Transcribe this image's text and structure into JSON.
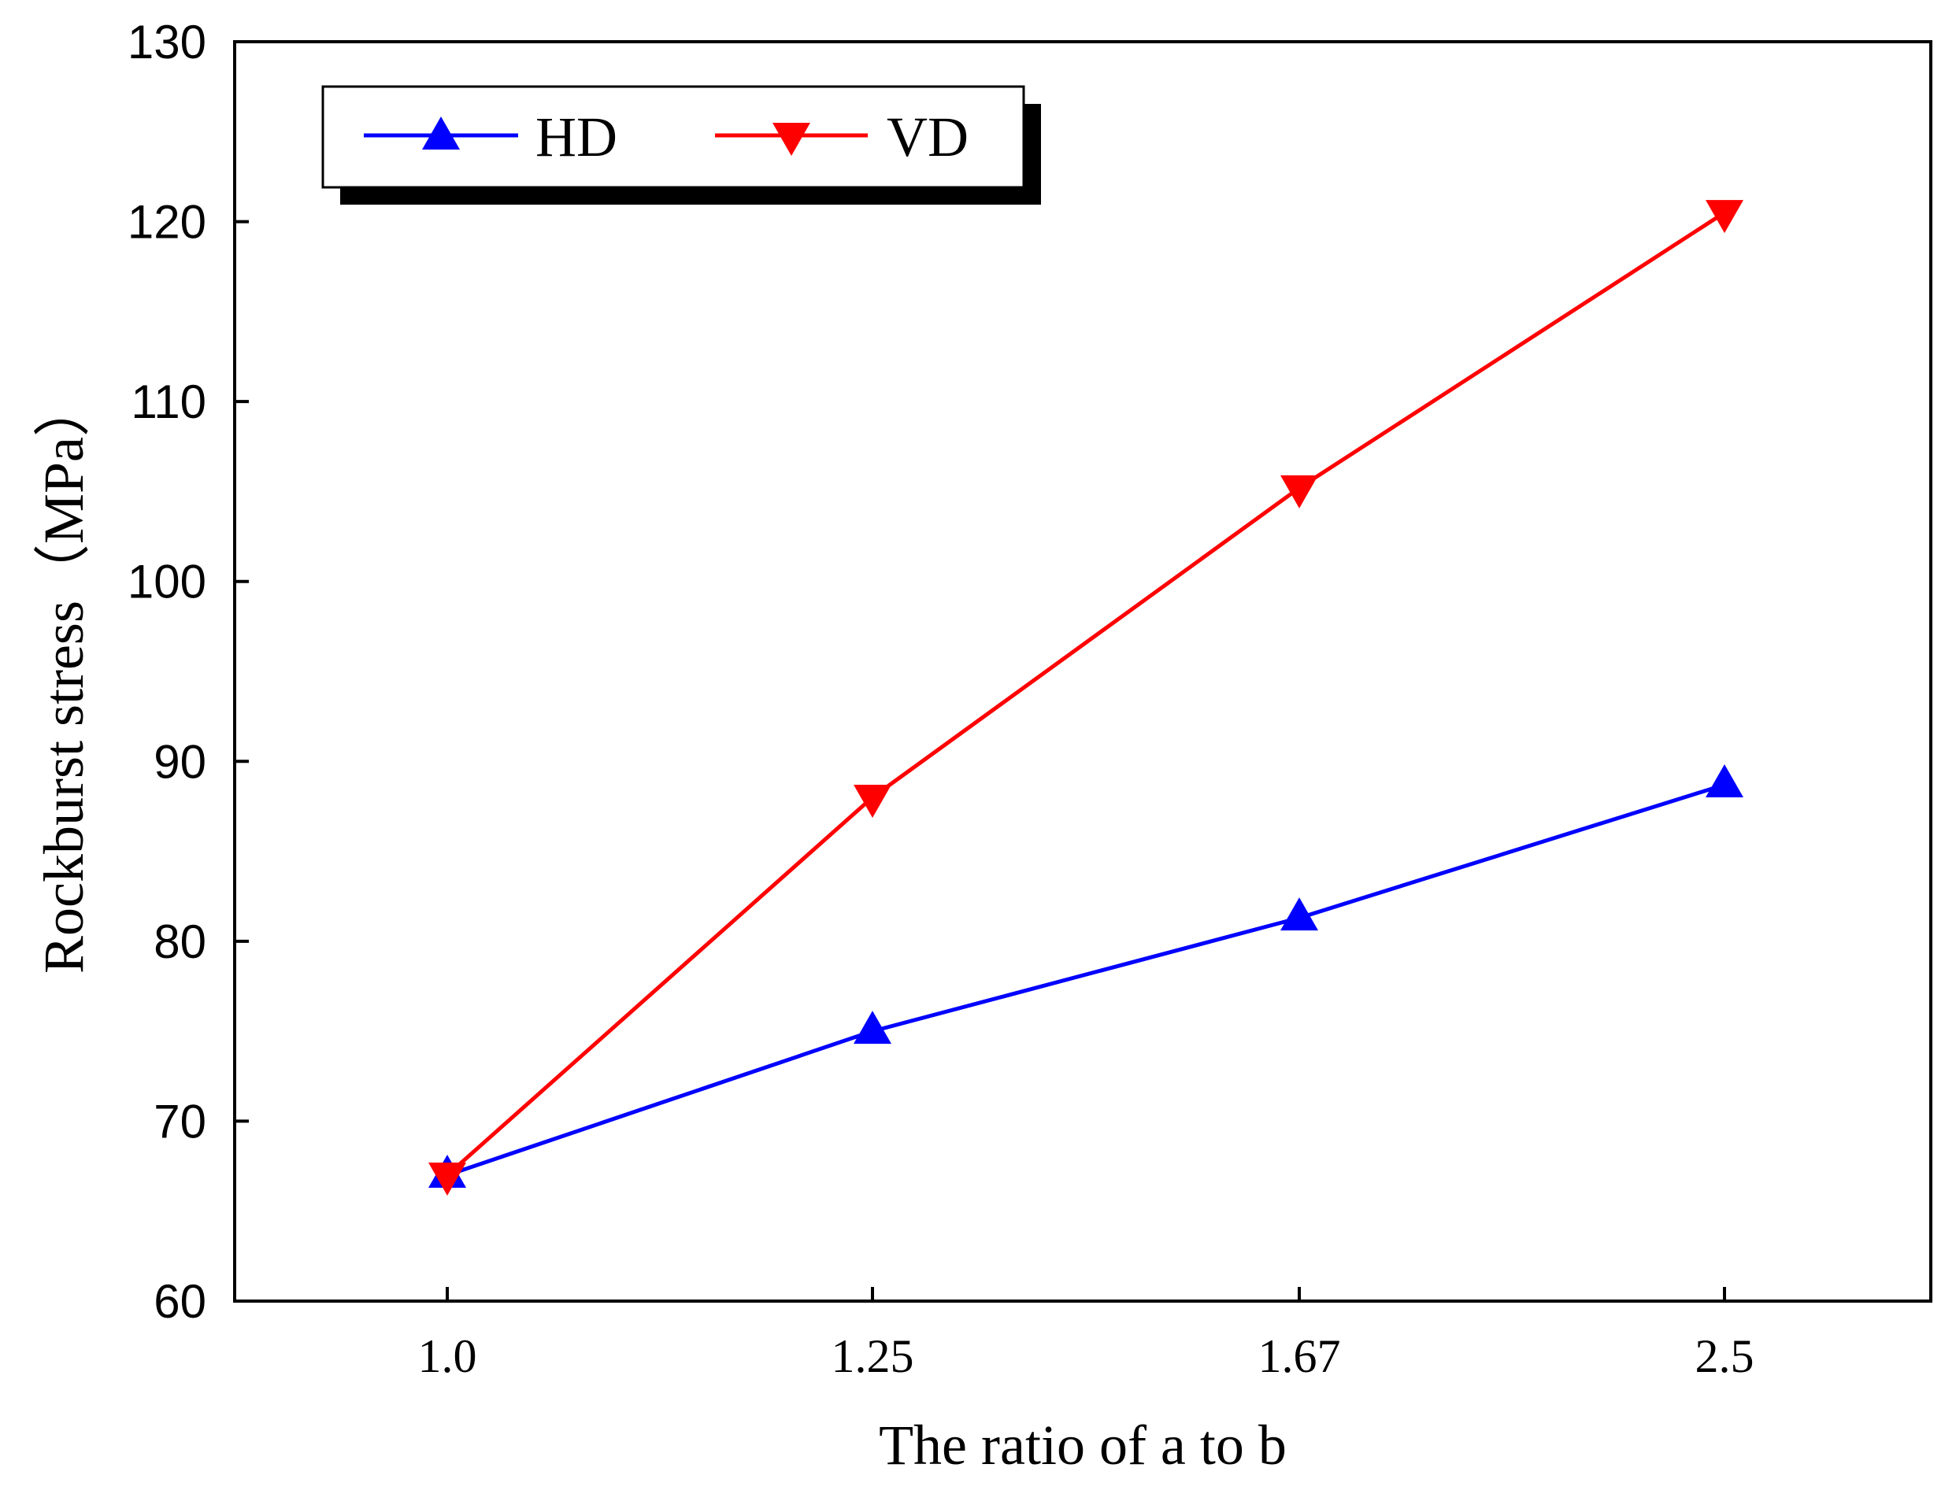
{
  "chart_data": {
    "type": "line",
    "title": "",
    "xlabel": "The ratio of a to b",
    "ylabel": "Rockburst stress（MPa）",
    "categories": [
      "1.0",
      "1.25",
      "1.67",
      "2.5"
    ],
    "ylim": [
      60,
      130
    ],
    "yticks": [
      60,
      70,
      80,
      90,
      100,
      110,
      120,
      130
    ],
    "grid": false,
    "legend_position": "top-left",
    "series": [
      {
        "name": "HD",
        "color": "#0000ff",
        "marker": "triangle-up",
        "values": [
          67.0,
          75.0,
          81.3,
          88.7
        ]
      },
      {
        "name": "VD",
        "color": "#ff0000",
        "marker": "triangle-down",
        "values": [
          67.0,
          88.0,
          105.2,
          120.5
        ]
      }
    ]
  }
}
